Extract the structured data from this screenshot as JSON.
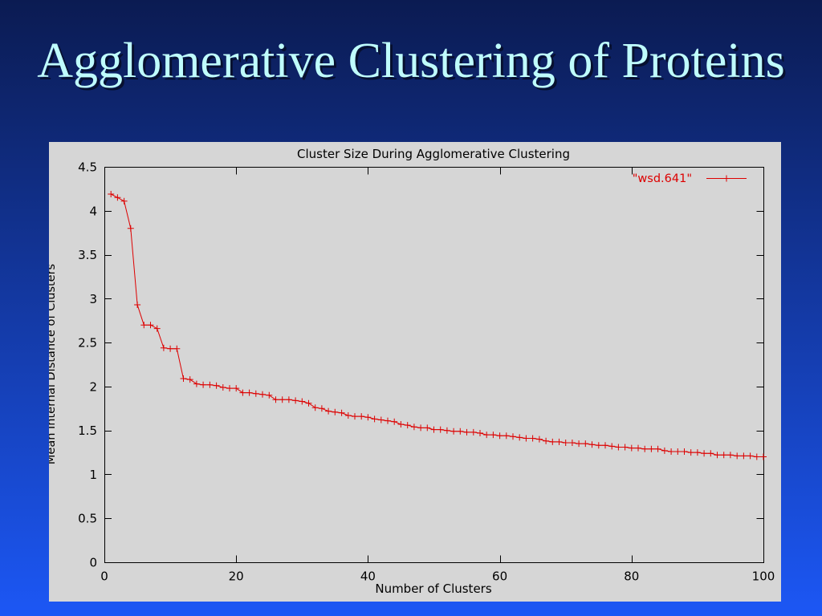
{
  "slide": {
    "title": "Agglomerative Clustering of Proteins"
  },
  "theme": {
    "background_top": "#0b1b52",
    "background_bottom": "#1c57f5",
    "title_color": "#bffcfc",
    "chart_background": "#d6d6d6"
  },
  "chart_data": {
    "type": "line",
    "title": "Cluster Size During Agglomerative Clustering",
    "xlabel": "Number of Clusters",
    "ylabel": "Mean Internal Distance of Clusters",
    "xlim": [
      0,
      100
    ],
    "ylim": [
      0,
      4.5
    ],
    "xticks": [
      0,
      20,
      40,
      60,
      80,
      100
    ],
    "x_tick_labels": [
      "0",
      "20",
      "40",
      "60",
      "80",
      "100"
    ],
    "yticks": [
      0,
      0.5,
      1,
      1.5,
      2,
      2.5,
      3,
      3.5,
      4,
      4.5
    ],
    "y_tick_labels": [
      "0",
      "0.5",
      "1",
      "1.5",
      "2",
      "2.5",
      "3",
      "3.5",
      "4",
      "4.5"
    ],
    "grid": false,
    "legend": "top-right",
    "x": [
      1,
      2,
      3,
      4,
      5,
      6,
      7,
      8,
      9,
      10,
      11,
      12,
      13,
      14,
      15,
      16,
      17,
      18,
      19,
      20,
      21,
      22,
      23,
      24,
      25,
      26,
      27,
      28,
      29,
      30,
      31,
      32,
      33,
      34,
      35,
      36,
      37,
      38,
      39,
      40,
      41,
      42,
      43,
      44,
      45,
      46,
      47,
      48,
      49,
      50,
      51,
      52,
      53,
      54,
      55,
      56,
      57,
      58,
      59,
      60,
      61,
      62,
      63,
      64,
      65,
      66,
      67,
      68,
      69,
      70,
      71,
      72,
      73,
      74,
      75,
      76,
      77,
      78,
      79,
      80,
      81,
      82,
      83,
      84,
      85,
      86,
      87,
      88,
      89,
      90,
      91,
      92,
      93,
      94,
      95,
      96,
      97,
      98,
      99,
      100
    ],
    "series": [
      {
        "name": "\"wsd.641\"",
        "color": "#dd0000",
        "marker": "plus",
        "values": [
          4.19,
          4.15,
          4.11,
          3.8,
          2.93,
          2.7,
          2.7,
          2.66,
          2.44,
          2.43,
          2.43,
          2.09,
          2.08,
          2.03,
          2.02,
          2.02,
          2.01,
          1.99,
          1.98,
          1.98,
          1.93,
          1.93,
          1.92,
          1.91,
          1.9,
          1.85,
          1.85,
          1.85,
          1.84,
          1.83,
          1.81,
          1.76,
          1.75,
          1.72,
          1.71,
          1.7,
          1.67,
          1.66,
          1.66,
          1.65,
          1.63,
          1.62,
          1.61,
          1.6,
          1.57,
          1.56,
          1.54,
          1.53,
          1.53,
          1.51,
          1.51,
          1.5,
          1.49,
          1.49,
          1.48,
          1.48,
          1.47,
          1.45,
          1.45,
          1.44,
          1.44,
          1.43,
          1.42,
          1.41,
          1.41,
          1.4,
          1.38,
          1.37,
          1.37,
          1.36,
          1.36,
          1.35,
          1.35,
          1.34,
          1.33,
          1.33,
          1.32,
          1.31,
          1.31,
          1.3,
          1.3,
          1.29,
          1.29,
          1.29,
          1.27,
          1.26,
          1.26,
          1.26,
          1.25,
          1.25,
          1.24,
          1.24,
          1.22,
          1.22,
          1.22,
          1.21,
          1.21,
          1.21,
          1.2,
          1.2
        ]
      }
    ]
  }
}
